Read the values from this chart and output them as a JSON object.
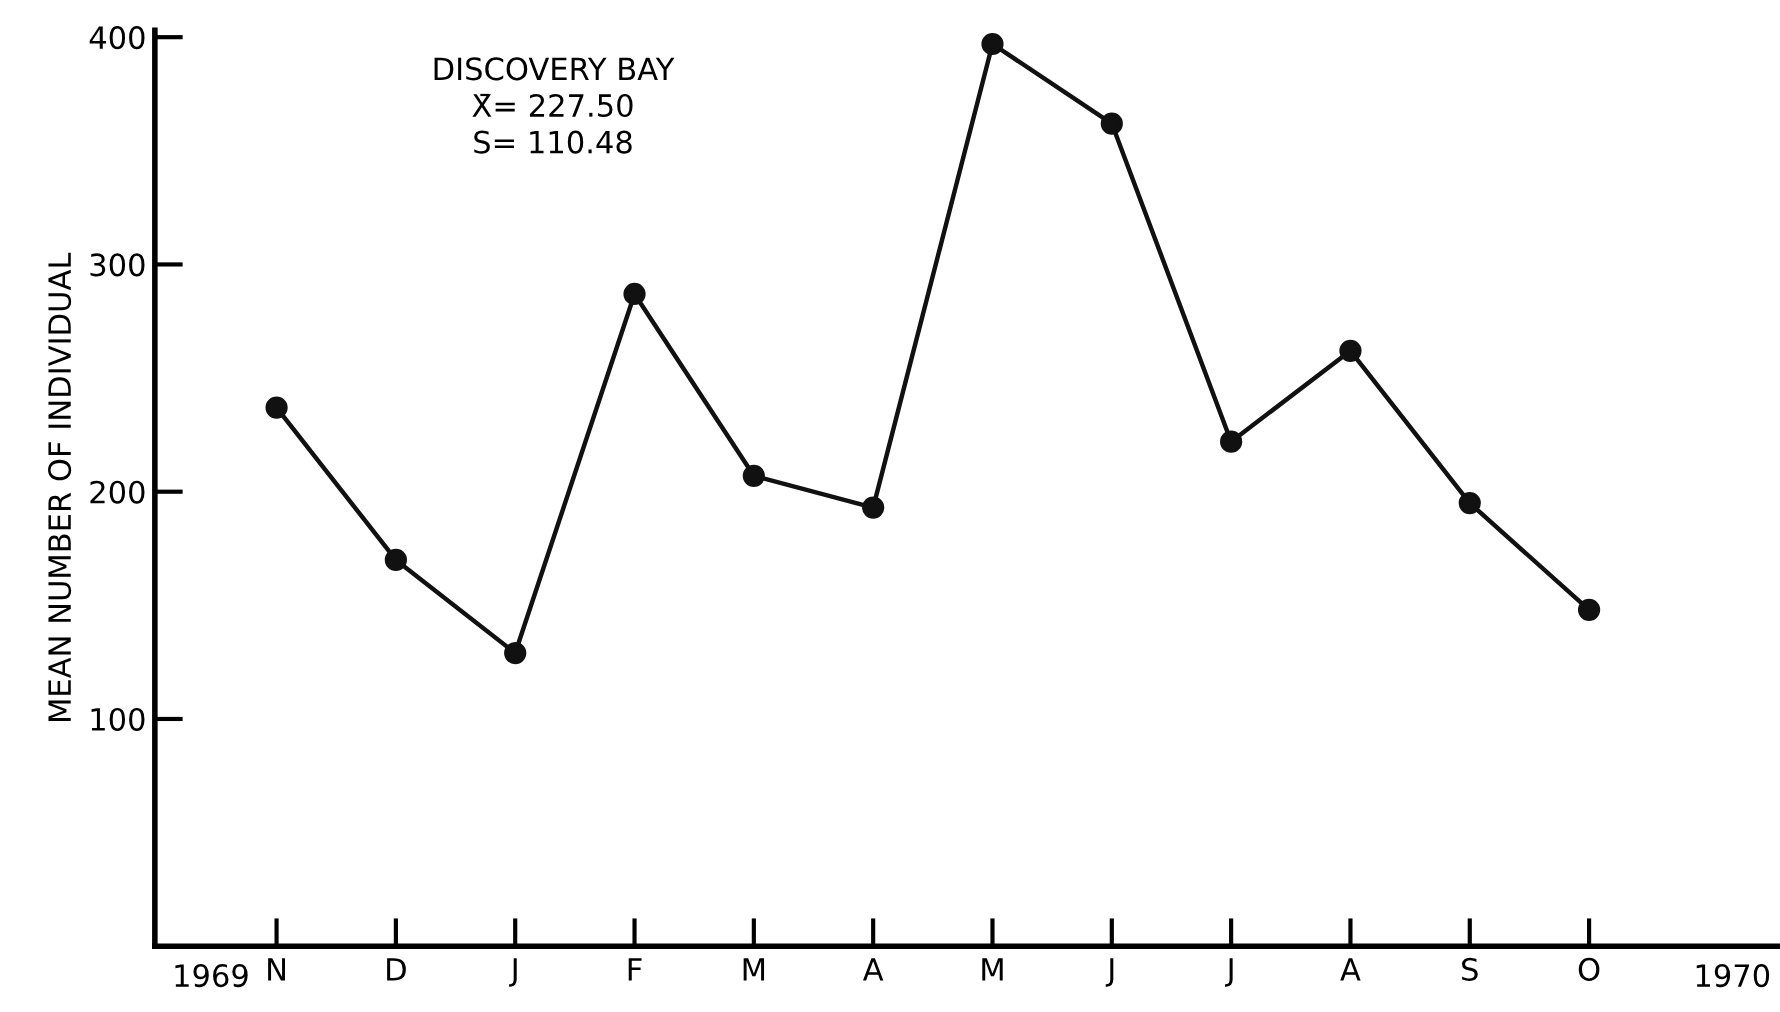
{
  "chart_data": {
    "type": "line",
    "title": "DISCOVERY BAY",
    "ylabel": "MEAN NUMBER OF INDIVIDUAL",
    "categories": [
      "N",
      "D",
      "J",
      "F",
      "M",
      "A",
      "M",
      "J",
      "J",
      "A",
      "S",
      "O"
    ],
    "series": [
      {
        "color": "#111111",
        "values": [
          237,
          170,
          129,
          287,
          207,
          193,
          397,
          362,
          222,
          262,
          195,
          148
        ]
      }
    ],
    "annotations": [
      "X̄= 227.50",
      "S= 110.48",
      "1969",
      "1970"
    ],
    "ylim": [
      0,
      403
    ],
    "yticks": [
      100,
      200,
      300,
      400
    ],
    "marker": "circle",
    "line_style": "solid",
    "grid": false,
    "legend": false
  }
}
